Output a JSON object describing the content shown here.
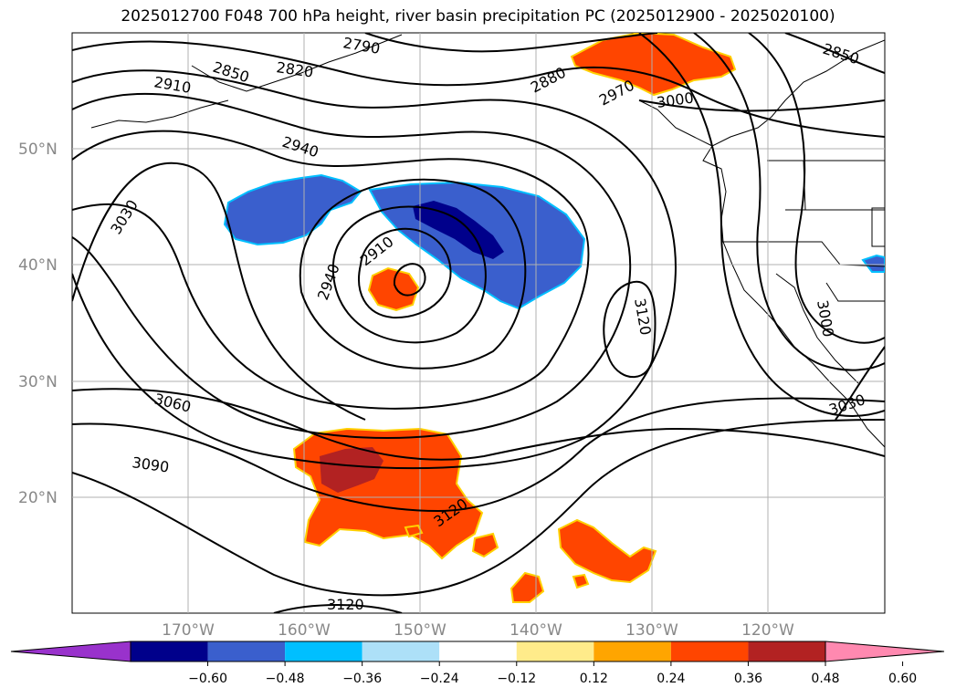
{
  "title": "2025012700 F048 700 hPa height, river basin precipitation PC (2025012900 - 2025020100)",
  "map": {
    "lat_labels": [
      "50°N",
      "40°N",
      "30°N",
      "20°N"
    ],
    "lon_labels": [
      "170°W",
      "160°W",
      "150°W",
      "140°W",
      "130°W",
      "120°W"
    ],
    "contour_labels": [
      "2790",
      "2850",
      "2820",
      "2910",
      "2940",
      "2880",
      "2970",
      "3000",
      "2850",
      "3030",
      "2910",
      "2940",
      "3120",
      "3000",
      "3060",
      "3090",
      "3120",
      "3120",
      "3030"
    ]
  },
  "colorbar": {
    "colors": [
      "#9932CC",
      "#00008B",
      "#3A5FCD",
      "#00BFFF",
      "#ADE0F8",
      "#FFFFFF",
      "#FFEB8A",
      "#FFA500",
      "#FF4500",
      "#B22222",
      "#FF89B0"
    ],
    "tick_labels": [
      "−0.60",
      "−0.48",
      "−0.36",
      "−0.24",
      "−0.12",
      "0.12",
      "0.24",
      "0.36",
      "0.48",
      "0.60"
    ]
  }
}
